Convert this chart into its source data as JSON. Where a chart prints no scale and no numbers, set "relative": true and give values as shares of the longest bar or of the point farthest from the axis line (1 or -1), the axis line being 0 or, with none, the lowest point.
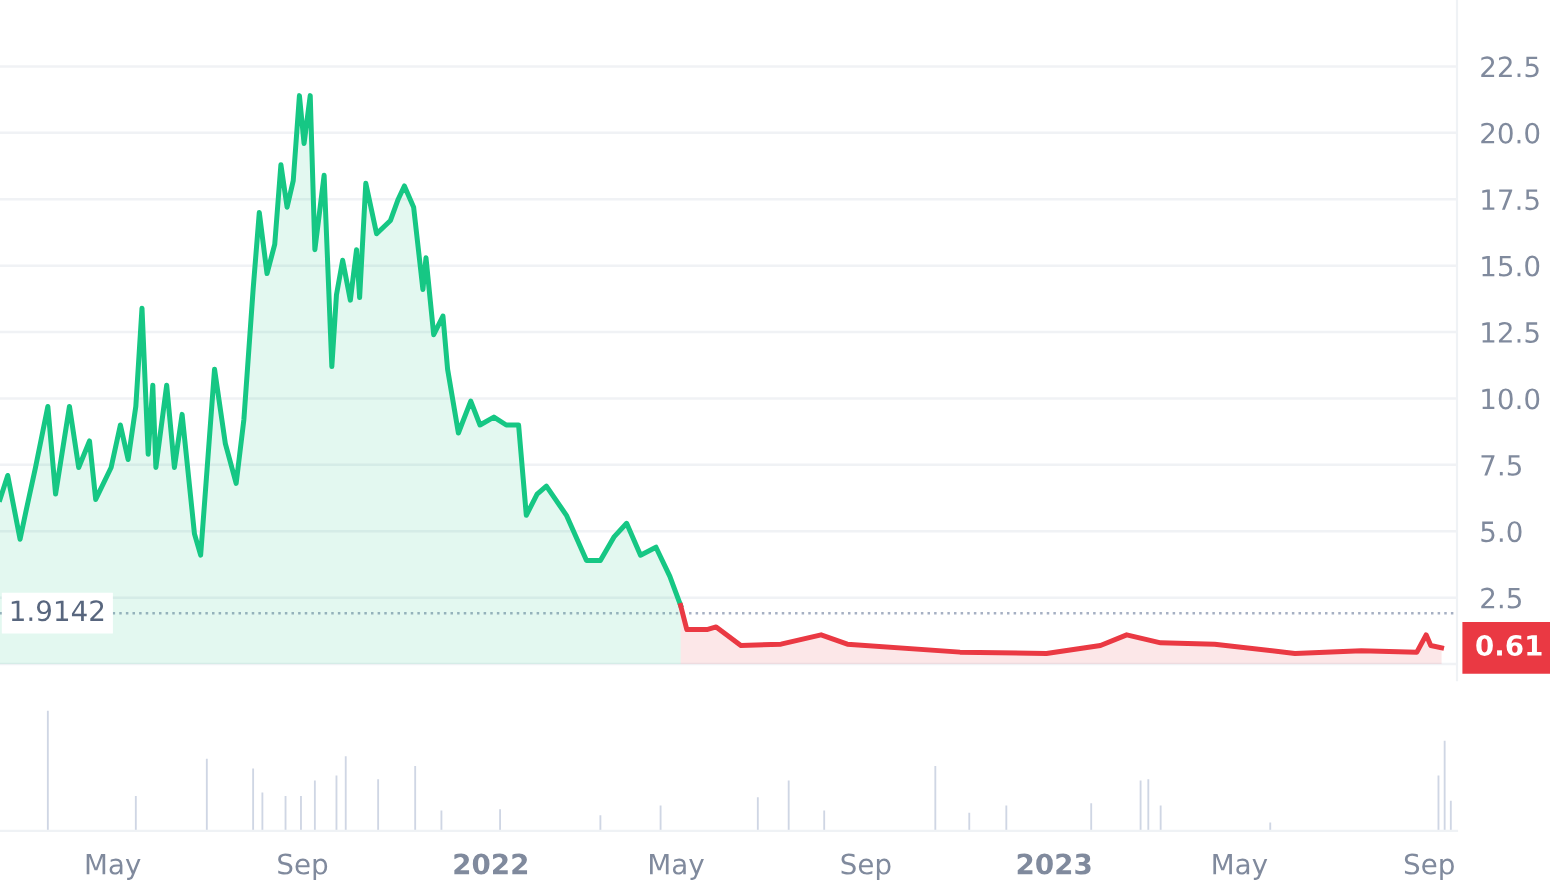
{
  "chart_data": [
    {
      "type": "area",
      "series": [
        {
          "color": "#16c784",
          "x": [
            "2021-02-17",
            "2021-02-22",
            "2021-03-02",
            "2021-03-06",
            "2021-03-12",
            "2021-03-20",
            "2021-03-25",
            "2021-04-03",
            "2021-04-09",
            "2021-04-16",
            "2021-04-20",
            "2021-04-30",
            "2021-05-06",
            "2021-05-11",
            "2021-05-16",
            "2021-05-20",
            "2021-05-24",
            "2021-05-27",
            "2021-05-29",
            "2021-06-05",
            "2021-06-10",
            "2021-06-15",
            "2021-06-23",
            "2021-06-27",
            "2021-07-06",
            "2021-07-13",
            "2021-07-20",
            "2021-07-25",
            "2021-07-31",
            "2021-08-04",
            "2021-08-09",
            "2021-08-14",
            "2021-08-18",
            "2021-08-22",
            "2021-08-26",
            "2021-08-30",
            "2021-09-02",
            "2021-09-06",
            "2021-09-09",
            "2021-09-15",
            "2021-09-20",
            "2021-09-23",
            "2021-09-27",
            "2021-10-02",
            "2021-10-06",
            "2021-10-08",
            "2021-10-12",
            "2021-10-19",
            "2021-10-28",
            "2021-11-02",
            "2021-11-06",
            "2021-11-12",
            "2021-11-18",
            "2021-11-20",
            "2021-11-25",
            "2021-12-01",
            "2021-12-04",
            "2021-12-11",
            "2021-12-19",
            "2021-12-25",
            "2022-01-03",
            "2022-01-11",
            "2022-01-19",
            "2022-01-24",
            "2022-01-31",
            "2022-02-06",
            "2022-02-19",
            "2022-03-04",
            "2022-03-13",
            "2022-03-22",
            "2022-03-30",
            "2022-04-08",
            "2022-04-18",
            "2022-04-27",
            "2022-05-04"
          ],
          "values": [
            6.2,
            7.1,
            4.7,
            5.8,
            7.4,
            9.7,
            6.4,
            9.7,
            7.4,
            8.4,
            6.2,
            7.4,
            9.0,
            7.7,
            9.7,
            13.4,
            7.9,
            10.5,
            7.4,
            10.5,
            7.4,
            9.4,
            4.9,
            4.1,
            11.1,
            8.3,
            6.8,
            9.2,
            14.1,
            17.0,
            14.7,
            15.8,
            18.8,
            17.2,
            18.2,
            21.4,
            19.6,
            21.4,
            15.6,
            18.4,
            11.2,
            13.9,
            15.2,
            13.7,
            15.6,
            13.8,
            18.1,
            16.2,
            16.7,
            17.5,
            18.0,
            17.2,
            14.1,
            15.3,
            12.4,
            13.1,
            11.1,
            8.7,
            9.9,
            9.0,
            9.3,
            9.0,
            9.0,
            5.6,
            6.4,
            6.7,
            5.6,
            3.9,
            3.9,
            4.8,
            5.3,
            4.1,
            4.4,
            3.3,
            2.2
          ]
        },
        {
          "color": "#ea3943",
          "x": [
            "2022-05-04",
            "2022-05-08",
            "2022-05-21",
            "2022-05-27",
            "2022-06-12",
            "2022-07-08",
            "2022-08-03",
            "2022-08-20",
            "2022-11-01",
            "2022-12-27",
            "2023-01-31",
            "2023-02-17",
            "2023-03-11",
            "2023-04-15",
            "2023-06-06",
            "2023-07-19",
            "2023-08-24",
            "2023-08-30",
            "2023-09-02",
            "2023-09-09"
          ],
          "values": [
            2.2,
            1.3,
            1.3,
            1.4,
            0.7,
            0.75,
            1.1,
            0.75,
            0.45,
            0.4,
            0.7,
            1.1,
            0.8,
            0.75,
            0.4,
            0.5,
            0.45,
            1.1,
            0.7,
            0.61
          ]
        }
      ],
      "xlim": [
        "2021-02-17",
        "2023-09-19"
      ],
      "ylim": [
        -0.6,
        25
      ],
      "yticks": [
        {
          "value": 0,
          "label": null
        },
        2.5,
        {
          "value": 5,
          "label": "5.0"
        },
        7.5,
        {
          "value": 10,
          "label": "10.0"
        },
        12.5,
        {
          "value": 15,
          "label": "15.0"
        },
        17.5,
        {
          "value": 20,
          "label": "20.0"
        },
        22.5
      ],
      "ref_lines": [
        {
          "axis": "y",
          "value": 1.9142,
          "label": "1.9142",
          "line_style": "dotted",
          "color": "#a6b0c3"
        }
      ],
      "annotations": [
        {
          "text": "0.61",
          "x": "2023-09-09",
          "y": 0.61
        }
      ],
      "grid": "y",
      "tick_labels": "y"
    },
    {
      "type": "bar",
      "relative": true,
      "x": [
        "2021-03-20",
        "2021-05-16",
        "2021-07-01",
        "2021-07-31",
        "2021-08-06",
        "2021-08-21",
        "2021-08-31",
        "2021-09-09",
        "2021-09-23",
        "2021-09-29",
        "2021-10-20",
        "2021-11-13",
        "2021-11-30",
        "2022-01-07",
        "2022-03-13",
        "2022-04-21",
        "2022-06-23",
        "2022-07-13",
        "2022-08-05",
        "2022-10-16",
        "2022-11-07",
        "2022-12-01",
        "2023-01-25",
        "2023-02-26",
        "2023-03-03",
        "2023-03-11",
        "2023-05-21",
        "2023-09-07",
        "2023-09-11",
        "2023-09-15"
      ],
      "values": [
        1.0,
        0.29,
        0.6,
        0.52,
        0.32,
        0.29,
        0.29,
        0.42,
        0.46,
        0.62,
        0.43,
        0.54,
        0.17,
        0.18,
        0.13,
        0.21,
        0.28,
        0.42,
        0.17,
        0.54,
        0.15,
        0.21,
        0.23,
        0.42,
        0.43,
        0.21,
        0.07,
        0.46,
        0.75,
        0.25
      ],
      "color": "#cfd6e4",
      "xlim": [
        "2021-02-17",
        "2023-09-19"
      ],
      "xticks": [
        {
          "value": "2021-05-01",
          "label": "May"
        },
        {
          "value": "2021-09-01",
          "label": "Sep"
        },
        {
          "value": "2022-01-01",
          "label": "2022"
        },
        {
          "value": "2022-05-01",
          "label": "May"
        },
        {
          "value": "2022-09-01",
          "label": "Sep"
        },
        {
          "value": "2023-01-01",
          "label": "2023"
        },
        {
          "value": "2023-05-01",
          "label": "May"
        },
        {
          "value": "2023-09-01",
          "label": "Sep"
        }
      ],
      "tick_labels": "x"
    }
  ]
}
